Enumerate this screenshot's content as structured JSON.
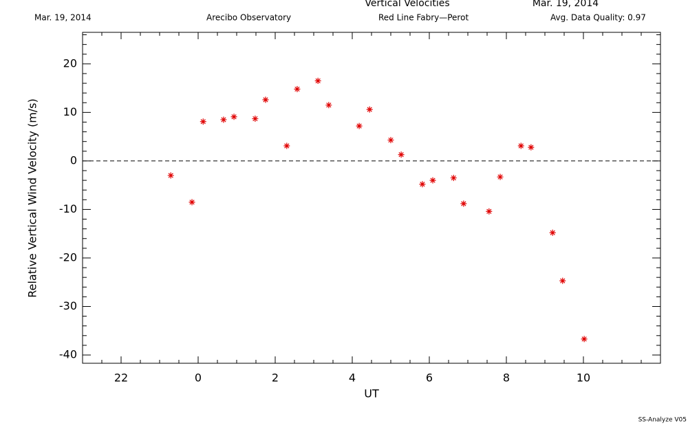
{
  "chart_data": {
    "type": "scatter",
    "title": "Vertical Velocities",
    "title_date": "Mar. 19, 2014",
    "subtitles": [
      "Mar. 19, 2014",
      "Arecibo Observatory",
      "Red Line Fabry—Perot",
      "Avg. Data Quality: 0.97"
    ],
    "footer": "SS-Analyze V05",
    "xlabel": "UT",
    "ylabel": "Relative Vertical Wind Velocity (m/s)",
    "xlim": [
      -3,
      12
    ],
    "ylim": [
      -41.7,
      26.5
    ],
    "xticks": [
      {
        "value": -2,
        "label": "22"
      },
      0,
      2,
      4,
      6,
      8,
      10
    ],
    "x_minor_ticks": [
      -2.5,
      -1.5,
      -1,
      -0.5,
      0.5,
      1,
      1.5,
      2.5,
      3,
      3.5,
      4.5,
      5,
      5.5,
      6.5,
      7,
      7.5,
      8.5,
      9,
      9.5,
      10.5,
      11,
      11.5
    ],
    "yticks": [
      -40,
      -30,
      -20,
      -10,
      0,
      10,
      20
    ],
    "y_minor_ticks": [
      -38,
      -36,
      -34,
      -32,
      -28,
      -26,
      -24,
      -22,
      -18,
      -16,
      -14,
      -12,
      -8,
      -6,
      -4,
      -2,
      2,
      4,
      6,
      8,
      12,
      14,
      16,
      18,
      22,
      24,
      26
    ],
    "reference_line": 0,
    "series": [
      {
        "color": "#e00000",
        "x": [
          -0.71,
          -0.16,
          0.13,
          0.66,
          0.93,
          1.48,
          1.75,
          2.3,
          2.57,
          3.11,
          3.39,
          4.18,
          4.45,
          5.0,
          5.27,
          5.82,
          6.09,
          6.63,
          6.89,
          7.55,
          7.84,
          8.38,
          8.64,
          9.2,
          9.46,
          10.02
        ],
        "values": [
          -3.0,
          -8.5,
          8.1,
          8.5,
          9.1,
          8.7,
          12.6,
          3.1,
          14.8,
          16.5,
          11.5,
          7.2,
          10.6,
          4.3,
          1.3,
          -4.8,
          -4.0,
          -3.5,
          -8.8,
          -10.4,
          -3.3,
          3.1,
          2.8,
          -14.8,
          -24.7,
          -36.7
        ]
      }
    ]
  }
}
